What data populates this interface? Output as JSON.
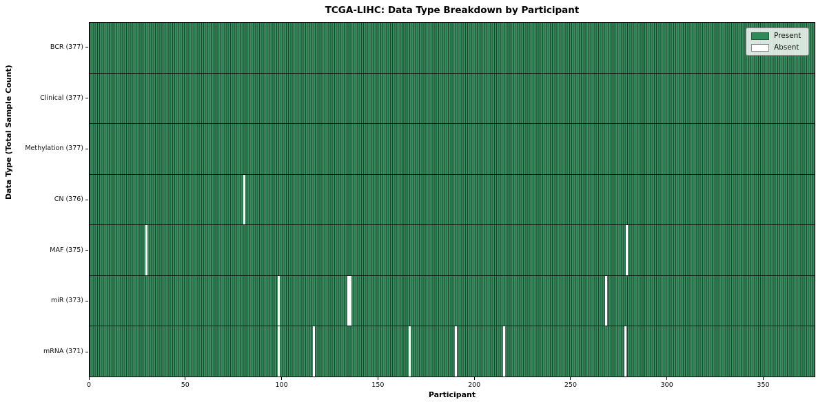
{
  "chart_data": {
    "type": "heatmap",
    "title": "TCGA-LIHC: Data Type Breakdown by Participant",
    "xlabel": "Participant",
    "ylabel": "Data Type (Total Sample Count)",
    "x_min": 0,
    "x_max": 377,
    "x_ticks": [
      0,
      50,
      100,
      150,
      200,
      250,
      300,
      350
    ],
    "n_participants": 377,
    "grid": "cell-borders",
    "legend_position": "upper-right",
    "legend": [
      {
        "label": "Present",
        "color": "#2e8b57"
      },
      {
        "label": "Absent",
        "color": "#ffffff"
      }
    ],
    "colors": {
      "present": "#2e8b57",
      "absent": "#ffffff",
      "cell_border": "rgba(0,0,0,0.5)",
      "row_separator": "rgba(0,0,0,0.8)"
    },
    "rows": [
      {
        "data_type": "BCR",
        "label": "BCR (377)",
        "total": 377,
        "absent_participants": []
      },
      {
        "data_type": "Clinical",
        "label": "Clinical (377)",
        "total": 377,
        "absent_participants": []
      },
      {
        "data_type": "Methylation",
        "label": "Methylation (377)",
        "total": 377,
        "absent_participants": []
      },
      {
        "data_type": "CN",
        "label": "CN (376)",
        "total": 376,
        "absent_participants": [
          80
        ]
      },
      {
        "data_type": "MAF",
        "label": "MAF (375)",
        "total": 375,
        "absent_participants": [
          29,
          279
        ]
      },
      {
        "data_type": "miR",
        "label": "miR (373)",
        "total": 373,
        "absent_participants": [
          98,
          134,
          135,
          268
        ]
      },
      {
        "data_type": "mRNA",
        "label": "mRNA (371)",
        "total": 371,
        "absent_participants": [
          98,
          116,
          166,
          190,
          215,
          278
        ]
      }
    ]
  }
}
